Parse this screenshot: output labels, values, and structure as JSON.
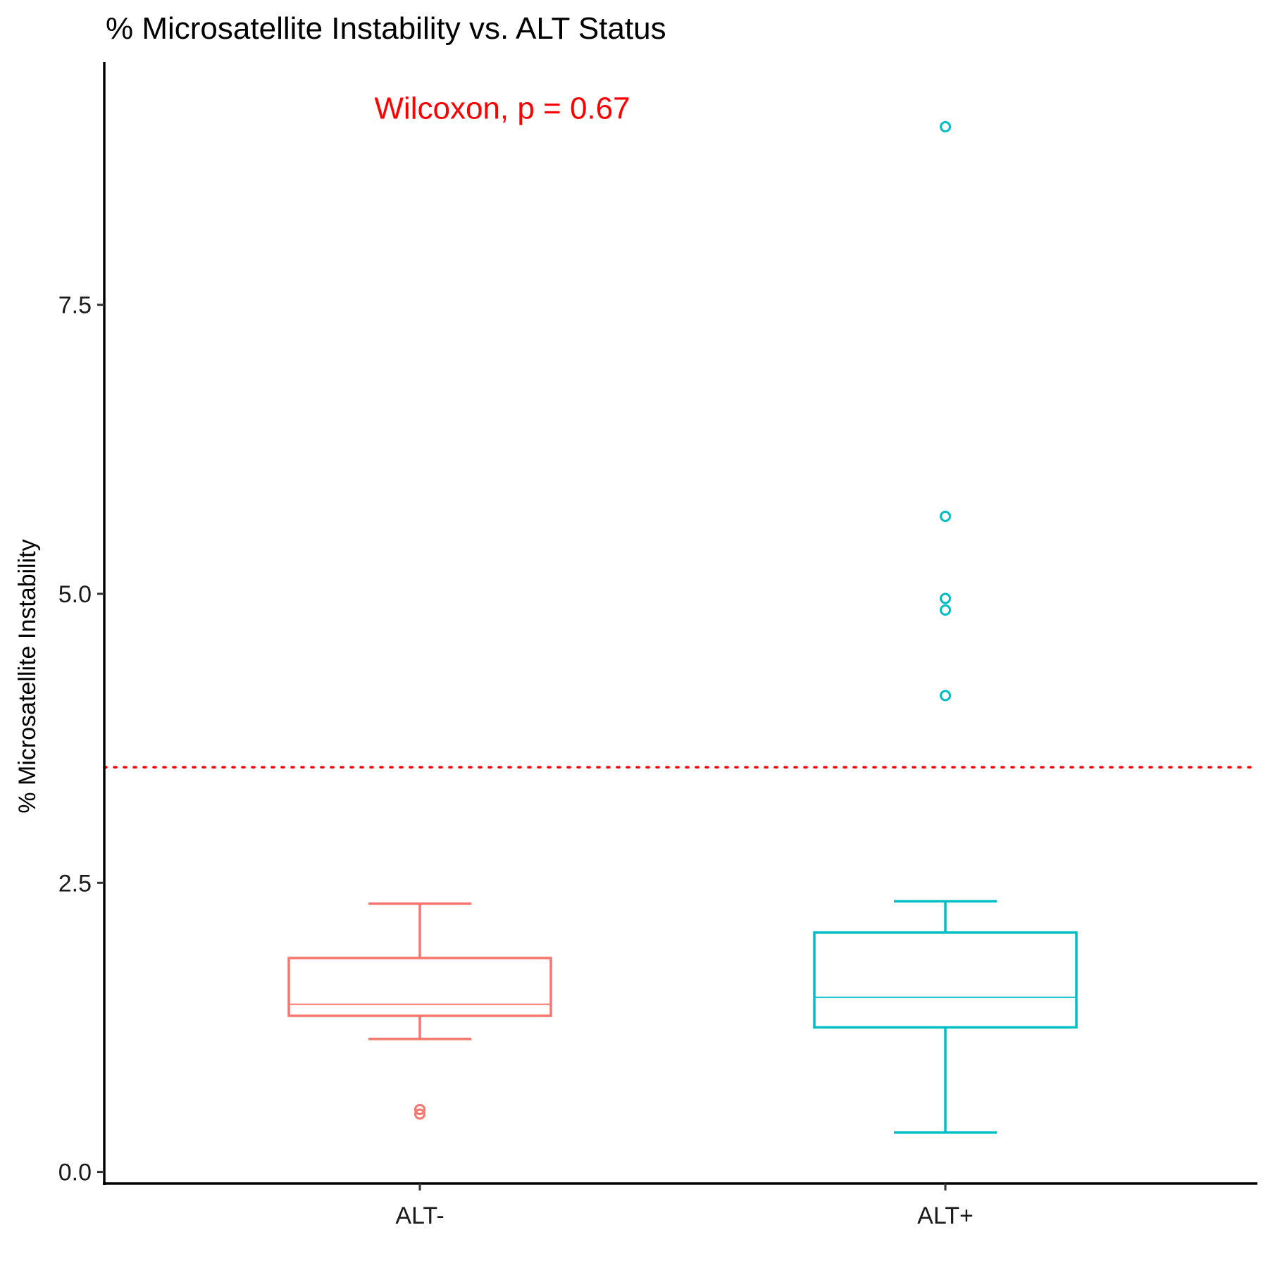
{
  "chart_data": {
    "type": "boxplot",
    "title": "% Microsatellite Instability vs. ALT Status",
    "xlabel": "",
    "ylabel": "% Microsatellite Instability",
    "ylim": [
      -0.1,
      9.6
    ],
    "yticks": [
      0.0,
      2.5,
      5.0,
      7.5
    ],
    "ytick_labels": [
      "0.0",
      "2.5",
      "5.0",
      "7.5"
    ],
    "grid": false,
    "legend": "none",
    "groups": [
      {
        "label": "ALT-",
        "color": "#F8766D",
        "whisker_low": 1.15,
        "q1": 1.35,
        "median": 1.45,
        "q3": 1.85,
        "whisker_high": 2.32,
        "outliers": [
          0.5,
          0.54
        ]
      },
      {
        "label": "ALT+",
        "color": "#00BFC4",
        "whisker_low": 0.34,
        "q1": 1.25,
        "median": 1.51,
        "q3": 2.07,
        "whisker_high": 2.34,
        "outliers": [
          4.12,
          4.86,
          4.96,
          5.67,
          9.04
        ]
      }
    ],
    "reference_line": {
      "y": 3.5,
      "color": "#FF0000",
      "style": "dotted"
    },
    "annotation": {
      "text": "Wilcoxon, p = 0.67",
      "color": "#FF0000",
      "y": 9.2,
      "x_category": 0.65
    }
  }
}
